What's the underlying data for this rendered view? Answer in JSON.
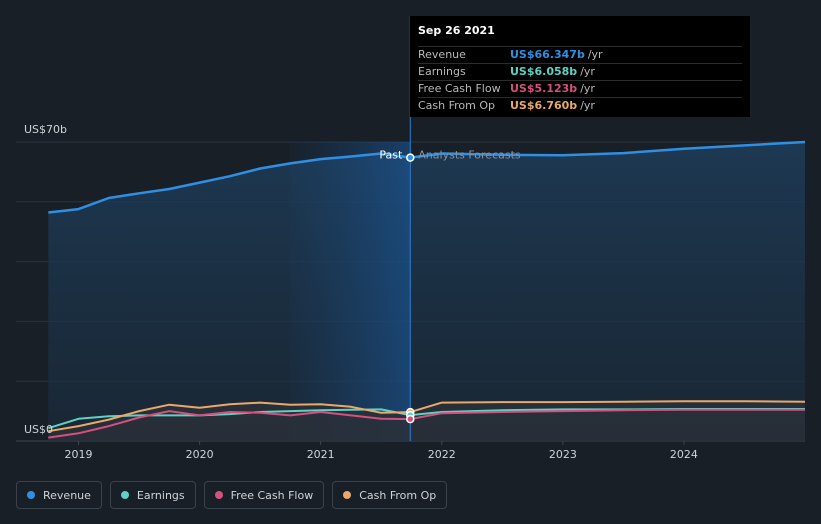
{
  "chart_data": {
    "type": "line",
    "title": "",
    "xlabel": "",
    "ylabel": "",
    "y_axis_labels": [
      "US$70b",
      "US$0"
    ],
    "ylim": [
      0,
      70
    ],
    "xlim": [
      2018.5,
      2025.0
    ],
    "x_ticks": [
      "2019",
      "2020",
      "2021",
      "2022",
      "2023",
      "2024"
    ],
    "x_tick_values": [
      2019,
      2020,
      2021,
      2022,
      2023,
      2024
    ],
    "past_label": "Past",
    "forecast_label": "Analysts Forecasts",
    "present_x": 2021.74,
    "series": [
      {
        "name": "Revenue",
        "color": "#2f8fe5",
        "x": [
          2018.75,
          2019.0,
          2019.25,
          2019.5,
          2019.75,
          2020.0,
          2020.25,
          2020.5,
          2020.75,
          2021.0,
          2021.25,
          2021.5,
          2021.74,
          2022.0,
          2022.5,
          2023.0,
          2023.5,
          2024.0,
          2024.5,
          2025.0
        ],
        "values": [
          53.5,
          54.3,
          56.9,
          58.0,
          59.0,
          60.5,
          62.0,
          63.8,
          65.0,
          66.0,
          66.6,
          67.3,
          66.35,
          67.3,
          67.0,
          66.9,
          67.4,
          68.4,
          69.2,
          70.0
        ]
      },
      {
        "name": "Earnings",
        "color": "#5fd0c4",
        "x": [
          2018.75,
          2019.0,
          2019.25,
          2019.5,
          2019.75,
          2020.0,
          2020.25,
          2020.5,
          2020.75,
          2021.0,
          2021.25,
          2021.5,
          2021.74,
          2022.0,
          2022.5,
          2023.0,
          2023.5,
          2024.0,
          2024.5,
          2025.0
        ],
        "values": [
          3.0,
          5.2,
          5.8,
          6.0,
          6.0,
          6.0,
          6.3,
          6.8,
          7.0,
          7.2,
          7.3,
          7.4,
          6.06,
          6.8,
          7.2,
          7.4,
          7.4,
          7.5,
          7.5,
          7.5
        ]
      },
      {
        "name": "Free Cash Flow",
        "color": "#d4507f",
        "x": [
          2018.75,
          2019.0,
          2019.25,
          2019.5,
          2019.75,
          2020.0,
          2020.25,
          2020.5,
          2020.75,
          2021.0,
          2021.25,
          2021.5,
          2021.74,
          2022.0,
          2022.5,
          2023.0,
          2023.5,
          2024.0,
          2024.5,
          2025.0
        ],
        "values": [
          0.8,
          1.8,
          3.5,
          5.5,
          7.0,
          6.0,
          6.8,
          6.6,
          6.0,
          6.8,
          6.0,
          5.2,
          5.12,
          6.5,
          6.8,
          7.0,
          7.2,
          7.3,
          7.3,
          7.3
        ]
      },
      {
        "name": "Cash From Op",
        "color": "#e8a96a",
        "x": [
          2018.75,
          2019.0,
          2019.25,
          2019.5,
          2019.75,
          2020.0,
          2020.25,
          2020.5,
          2020.75,
          2021.0,
          2021.25,
          2021.5,
          2021.74,
          2022.0,
          2022.5,
          2023.0,
          2023.5,
          2024.0,
          2024.5,
          2025.0
        ],
        "values": [
          2.3,
          3.5,
          5.0,
          7.0,
          8.5,
          7.8,
          8.6,
          9.0,
          8.5,
          8.6,
          8.0,
          6.6,
          6.76,
          9.0,
          9.1,
          9.1,
          9.2,
          9.3,
          9.3,
          9.2
        ]
      }
    ]
  },
  "tooltip": {
    "date": "Sep 26 2021",
    "rows": [
      {
        "label": "Revenue",
        "value": "US$66.347b",
        "unit": "/yr",
        "color": "#2f8fe5"
      },
      {
        "label": "Earnings",
        "value": "US$6.058b",
        "unit": "/yr",
        "color": "#5fd0c4"
      },
      {
        "label": "Free Cash Flow",
        "value": "US$5.123b",
        "unit": "/yr",
        "color": "#d4507f"
      },
      {
        "label": "Cash From Op",
        "value": "US$6.760b",
        "unit": "/yr",
        "color": "#e8a96a"
      }
    ]
  },
  "legend": [
    {
      "label": "Revenue",
      "color": "#2f8fe5"
    },
    {
      "label": "Earnings",
      "color": "#5fd0c4"
    },
    {
      "label": "Free Cash Flow",
      "color": "#d4507f"
    },
    {
      "label": "Cash From Op",
      "color": "#e8a96a"
    }
  ]
}
